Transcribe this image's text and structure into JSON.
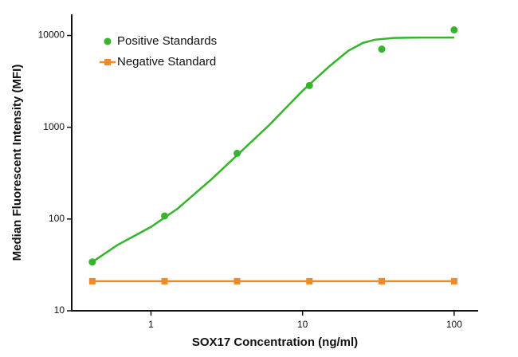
{
  "chart_data": {
    "type": "scatter",
    "x_label": "SOX17 Concentration (ng/ml)",
    "y_label": "Median Fluorescent Intensity (MFI)",
    "x_log": true,
    "y_log": true,
    "xlim": [
      0.3,
      144
    ],
    "ylim": [
      10,
      17000
    ],
    "xticks": [
      1,
      10,
      100
    ],
    "yticks": [
      10,
      100,
      1000,
      10000
    ],
    "legend": "upper left",
    "series": [
      {
        "name": "Positive Standards",
        "color": "#35b42c",
        "marker": "circle",
        "line": false,
        "x": [
          0.41,
          1.23,
          3.7,
          11.1,
          33.3,
          100
        ],
        "values": [
          34,
          108,
          520,
          2850,
          7100,
          11500
        ]
      },
      {
        "name": "Negative Standard",
        "color": "#f08a24",
        "marker": "square",
        "line": true,
        "x": [
          0.41,
          1.23,
          3.7,
          11.1,
          33.3,
          100
        ],
        "values": [
          21,
          21,
          21,
          21,
          21,
          21
        ]
      }
    ],
    "fit": {
      "color": "#35b42c",
      "x": [
        0.41,
        0.6,
        1,
        1.5,
        2.5,
        4,
        6,
        10,
        15,
        20,
        25,
        30,
        40,
        60,
        100
      ],
      "values": [
        34,
        52,
        82,
        130,
        270,
        560,
        1050,
        2500,
        4600,
        6800,
        8300,
        9000,
        9400,
        9500,
        9500
      ]
    }
  }
}
